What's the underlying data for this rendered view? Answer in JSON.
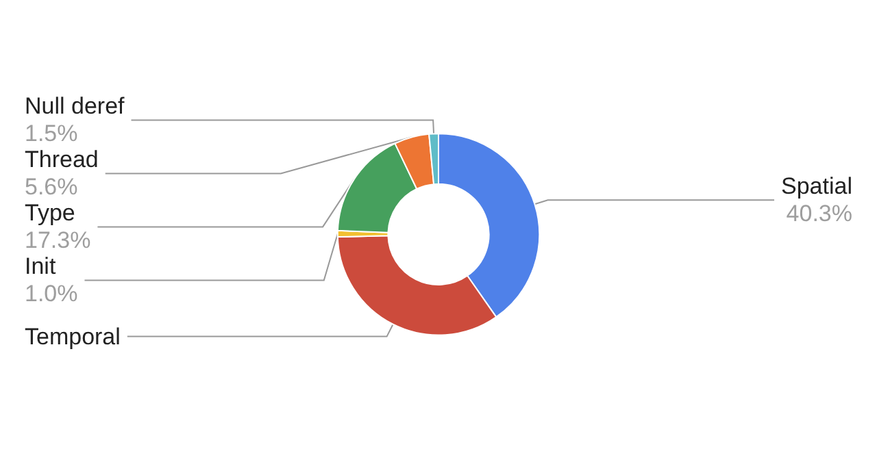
{
  "chart_data": {
    "type": "donut",
    "categories": [
      "Spatial",
      "Temporal",
      "Init",
      "Type",
      "Thread",
      "Null deref"
    ],
    "values": [
      40.3,
      34.3,
      1.0,
      17.3,
      5.6,
      1.5
    ],
    "colors": [
      "#4f81e9",
      "#cc4b3c",
      "#f2c031",
      "#46a05d",
      "#ed7533",
      "#5fbcc8"
    ],
    "value_labels": [
      "40.3%",
      null,
      "1.0%",
      "17.3%",
      "5.6%",
      "1.5%"
    ]
  }
}
